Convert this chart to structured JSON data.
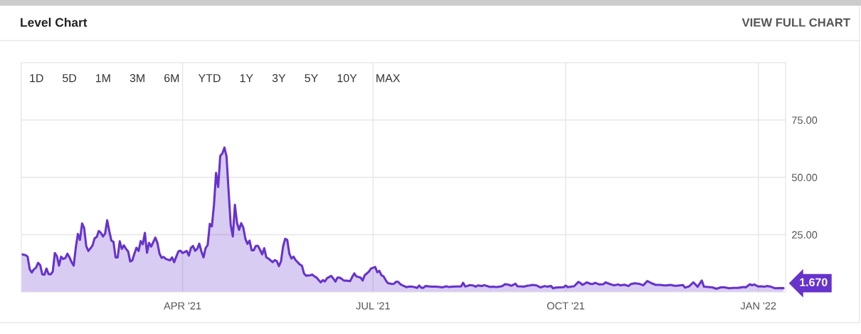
{
  "chart_data": {
    "type": "area",
    "title": "Level Chart",
    "annotations": [
      "VIEW FULL CHART",
      "1D",
      "5D",
      "1M",
      "3M",
      "6M",
      "YTD",
      "1Y",
      "3Y",
      "5Y",
      "10Y",
      "MAX",
      {
        "text": "1.670",
        "x": "2022-01-13",
        "y": 1.67
      }
    ],
    "x": [
      "2021-01-14",
      "2021-01-16",
      "2021-01-17",
      "2021-01-18",
      "2021-01-19",
      "2021-01-20",
      "2021-01-21",
      "2021-01-22",
      "2021-01-23",
      "2021-01-24",
      "2021-01-25",
      "2021-01-26",
      "2021-01-27",
      "2021-01-28",
      "2021-01-29",
      "2021-01-30",
      "2021-01-31",
      "2021-02-01",
      "2021-02-02",
      "2021-02-03",
      "2021-02-04",
      "2021-02-05",
      "2021-02-06",
      "2021-02-07",
      "2021-02-08",
      "2021-02-09",
      "2021-02-10",
      "2021-02-11",
      "2021-02-12",
      "2021-02-13",
      "2021-02-14",
      "2021-02-15",
      "2021-02-16",
      "2021-02-17",
      "2021-02-18",
      "2021-02-19",
      "2021-02-20",
      "2021-02-21",
      "2021-02-22",
      "2021-02-23",
      "2021-02-24",
      "2021-02-25",
      "2021-02-26",
      "2021-02-27",
      "2021-02-28",
      "2021-03-01",
      "2021-03-02",
      "2021-03-03",
      "2021-03-04",
      "2021-03-05",
      "2021-03-06",
      "2021-03-07",
      "2021-03-08",
      "2021-03-09",
      "2021-03-10",
      "2021-03-11",
      "2021-03-12",
      "2021-03-13",
      "2021-03-14",
      "2021-03-15",
      "2021-03-16",
      "2021-03-17",
      "2021-03-19",
      "2021-03-20",
      "2021-03-21",
      "2021-03-22",
      "2021-03-23",
      "2021-03-24",
      "2021-03-26",
      "2021-03-27",
      "2021-03-28",
      "2021-03-29",
      "2021-03-30",
      "2021-03-31",
      "2021-04-01",
      "2021-04-03",
      "2021-04-04",
      "2021-04-05",
      "2021-04-06",
      "2021-04-07",
      "2021-04-08",
      "2021-04-09",
      "2021-04-10",
      "2021-04-11",
      "2021-04-12",
      "2021-04-13",
      "2021-04-14",
      "2021-04-15",
      "2021-04-16",
      "2021-04-17",
      "2021-04-18",
      "2021-04-19",
      "2021-04-20",
      "2021-04-21",
      "2021-04-22",
      "2021-04-23",
      "2021-04-24",
      "2021-04-25",
      "2021-04-26",
      "2021-04-27",
      "2021-04-28",
      "2021-04-29",
      "2021-04-30",
      "2021-05-01",
      "2021-05-02",
      "2021-05-03",
      "2021-05-04",
      "2021-05-05",
      "2021-05-06",
      "2021-05-07",
      "2021-05-08",
      "2021-05-09",
      "2021-05-10",
      "2021-05-11",
      "2021-05-12",
      "2021-05-14",
      "2021-05-15",
      "2021-05-16",
      "2021-05-17",
      "2021-05-18",
      "2021-05-19",
      "2021-05-20",
      "2021-05-21",
      "2021-05-22",
      "2021-05-23",
      "2021-05-24",
      "2021-05-25",
      "2021-05-27",
      "2021-05-28",
      "2021-05-29",
      "2021-05-30",
      "2021-06-01",
      "2021-06-02",
      "2021-06-03",
      "2021-06-04",
      "2021-06-05",
      "2021-06-06",
      "2021-06-07",
      "2021-06-08",
      "2021-06-09",
      "2021-06-11",
      "2021-06-12",
      "2021-06-13",
      "2021-06-14",
      "2021-06-15",
      "2021-06-16",
      "2021-06-17",
      "2021-06-19",
      "2021-06-20",
      "2021-06-21",
      "2021-06-22",
      "2021-06-23",
      "2021-06-25",
      "2021-06-26",
      "2021-06-27",
      "2021-06-29",
      "2021-06-30",
      "2021-07-02",
      "2021-07-03",
      "2021-07-04",
      "2021-07-05",
      "2021-07-06",
      "2021-07-07",
      "2021-07-08",
      "2021-07-10",
      "2021-07-11",
      "2021-07-12",
      "2021-07-13",
      "2021-07-14",
      "2021-07-15",
      "2021-07-17",
      "2021-07-18",
      "2021-07-19",
      "2021-07-21",
      "2021-07-22",
      "2021-07-23",
      "2021-07-24",
      "2021-07-25",
      "2021-07-26",
      "2021-07-28",
      "2021-07-29",
      "2021-07-31",
      "2021-08-02",
      "2021-08-03",
      "2021-08-05",
      "2021-08-06",
      "2021-08-08",
      "2021-08-10",
      "2021-08-11",
      "2021-08-12",
      "2021-08-13",
      "2021-08-14",
      "2021-08-15",
      "2021-08-16",
      "2021-08-18",
      "2021-08-19",
      "2021-08-20",
      "2021-08-22",
      "2021-08-23",
      "2021-08-24",
      "2021-08-26",
      "2021-08-27",
      "2021-08-29",
      "2021-08-31",
      "2021-09-01",
      "2021-09-02",
      "2021-09-04",
      "2021-09-05",
      "2021-09-07",
      "2021-09-08",
      "2021-09-10",
      "2021-09-11",
      "2021-09-13",
      "2021-09-14",
      "2021-09-15",
      "2021-09-17",
      "2021-09-18",
      "2021-09-19",
      "2021-09-21",
      "2021-09-22",
      "2021-09-24",
      "2021-09-25",
      "2021-09-26",
      "2021-09-28",
      "2021-09-30",
      "2021-10-01",
      "2021-10-02",
      "2021-10-04",
      "2021-10-05",
      "2021-10-07",
      "2021-10-08",
      "2021-10-09",
      "2021-10-10",
      "2021-10-11",
      "2021-10-13",
      "2021-10-14",
      "2021-10-15",
      "2021-10-17",
      "2021-10-19",
      "2021-10-20",
      "2021-10-22",
      "2021-10-24",
      "2021-10-26",
      "2021-10-27",
      "2021-10-29",
      "2021-10-31",
      "2021-11-01",
      "2021-11-03",
      "2021-11-05",
      "2021-11-07",
      "2021-11-09",
      "2021-11-11",
      "2021-11-13",
      "2021-11-15",
      "2021-11-17",
      "2021-11-18",
      "2021-11-20",
      "2021-11-22",
      "2021-11-23",
      "2021-11-26",
      "2021-11-27",
      "2021-11-29",
      "2021-12-01",
      "2021-12-03",
      "2021-12-05",
      "2021-12-06",
      "2021-12-09",
      "2021-12-10",
      "2021-12-12",
      "2021-12-14",
      "2021-12-16",
      "2021-12-18",
      "2021-12-20",
      "2021-12-22",
      "2021-12-23",
      "2021-12-25",
      "2021-12-26",
      "2021-12-28",
      "2021-12-29",
      "2021-12-30",
      "2022-01-01",
      "2022-01-02",
      "2022-01-04",
      "2022-01-05",
      "2022-01-07",
      "2022-01-09",
      "2022-01-11",
      "2022-01-13"
    ],
    "series": [
      {
        "color": "#6633cc",
        "values": [
          16.5,
          16.1,
          15.4,
          9.9,
          8.5,
          9.9,
          10.6,
          12.7,
          11.7,
          7.7,
          7.5,
          10.2,
          7.8,
          7.7,
          8.9,
          17,
          15.6,
          11.5,
          15.4,
          14.4,
          14.8,
          16.7,
          15.1,
          13,
          11.5,
          19.3,
          25.3,
          22.7,
          29.9,
          27.9,
          20,
          17.9,
          19,
          20.3,
          23.4,
          24,
          26.6,
          25.8,
          24.2,
          25.5,
          31.3,
          26.6,
          22.4,
          21.9,
          15.1,
          15.1,
          22.1,
          18.8,
          20.3,
          18.8,
          17.7,
          13.3,
          13.8,
          16.7,
          19.3,
          17.9,
          22.2,
          20.8,
          25.8,
          17.1,
          21.4,
          19.8,
          23.7,
          21.4,
          16.7,
          14.9,
          15.3,
          14.4,
          13.8,
          15.1,
          13,
          15.4,
          17.7,
          18,
          17,
          17.9,
          15.9,
          19.2,
          20.1,
          18,
          18.8,
          21.1,
          17.7,
          15.1,
          19.1,
          20.5,
          29.7,
          28.6,
          38,
          51.9,
          45.8,
          59.4,
          60.4,
          63,
          59.1,
          43.8,
          29.2,
          24.2,
          38,
          30.2,
          27.1,
          30,
          28.1,
          23.2,
          21,
          22.4,
          18.2,
          18.2,
          20.1,
          20.1,
          18.4,
          16.4,
          19.1,
          15.1,
          14.6,
          13,
          13.9,
          13.5,
          11.3,
          13.3,
          19.8,
          23.2,
          22.7,
          16.7,
          14.6,
          15.4,
          13.9,
          12,
          11.5,
          8.1,
          7.1,
          7.3,
          7.6,
          6.8,
          6.3,
          5.2,
          4.2,
          5.2,
          4.6,
          6,
          7,
          5.9,
          4.5,
          6.3,
          6.3,
          5.7,
          5,
          4.9,
          4.7,
          6.5,
          8.1,
          6.8,
          6.3,
          5,
          7.3,
          8.9,
          10.2,
          10.9,
          8.6,
          9.2,
          7.3,
          6.8,
          5.2,
          3.9,
          3.5,
          3.6,
          4.5,
          4.4,
          3.4,
          2.9,
          2.1,
          2.3,
          2.4,
          2.1,
          1.8,
          2.8,
          1.9,
          1.8,
          2.6,
          2.4,
          2.3,
          2.3,
          2.2,
          2,
          2.5,
          2.2,
          2.3,
          2.4,
          2.4,
          2.4,
          4,
          2.4,
          2.6,
          3,
          2.8,
          2.3,
          2.9,
          2.6,
          3,
          2.7,
          2.2,
          2.3,
          2.2,
          2.4,
          2.7,
          3.4,
          3.1,
          2.7,
          3.6,
          2.5,
          2.4,
          2.3,
          2.8,
          2.9,
          3.1,
          2.9,
          2.4,
          2,
          2.6,
          2.3,
          2.6,
          1.6,
          1.9,
          2,
          2.1,
          2.8,
          2.1,
          2.4,
          2.5,
          4.4,
          3.9,
          3.1,
          3.6,
          4.2,
          3.5,
          3.5,
          4,
          3.3,
          3.4,
          4.2,
          3.5,
          2.9,
          3.3,
          2.9,
          3.2,
          2.6,
          3.4,
          3.8,
          3.6,
          2.9,
          4.8,
          3.8,
          3.1,
          3.1,
          2.9,
          2.9,
          3.1,
          2.7,
          2.7,
          3,
          1.9,
          2.5,
          4.2,
          2.3,
          5,
          2.3,
          2.1,
          2,
          1.4,
          2,
          2,
          1.6,
          1.8,
          1.8,
          1.9,
          2.2,
          2,
          3.4,
          2.9,
          3.3,
          2.4,
          2.5,
          2.3,
          2.6,
          2.3,
          1.6,
          1.7,
          1.67
        ]
      }
    ],
    "xlim": [
      "2021-01-14",
      "2022-01-14"
    ],
    "xticks": [
      {
        "value": "2021-04-01",
        "label": "APR '21"
      },
      {
        "value": "2021-07-01",
        "label": "JUL '21"
      },
      {
        "value": "2021-10-01",
        "label": "OCT '21"
      },
      {
        "value": "2022-01-01",
        "label": "JAN '22"
      }
    ],
    "ylim": [
      0,
      100
    ],
    "yticks": [
      {
        "value": 25,
        "label": "25.00"
      },
      {
        "value": 50,
        "label": "50.00"
      },
      {
        "value": 75,
        "label": "75.00"
      }
    ],
    "grid": true
  }
}
